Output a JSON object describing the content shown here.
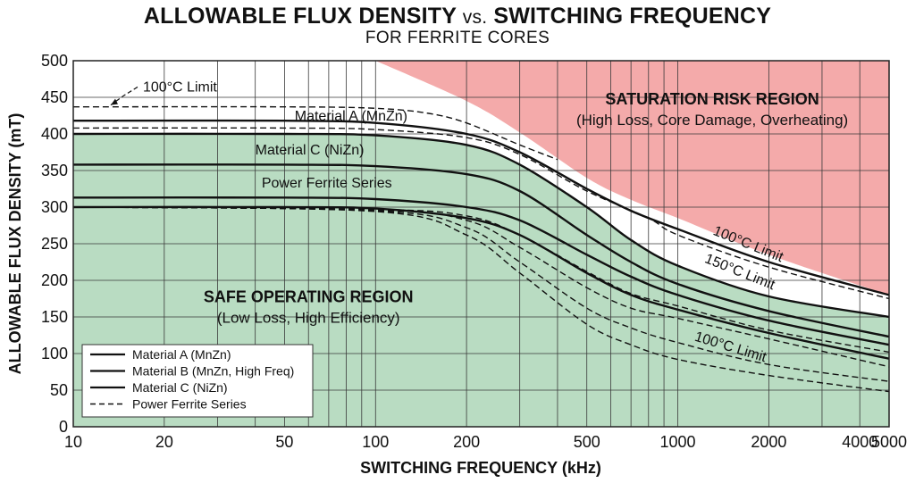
{
  "title_main": "ALLOWABLE FLUX DENSITY",
  "title_vs": "vs.",
  "title_rest": "SWITCHING FREQUENCY",
  "subtitle": "FOR FERRITE CORES",
  "chart_data": {
    "type": "line",
    "title": "ALLOWABLE FLUX DENSITY vs. SWITCHING FREQUENCY",
    "subtitle": "FOR FERRITE CORES",
    "xlabel": "SWITCHING FREQUENCY (kHz)",
    "ylabel": "ALLOWABLE FLUX DENSITY (mT)",
    "xscale": "log",
    "xlim": [
      10,
      5000
    ],
    "ylim": [
      0,
      500
    ],
    "x_ticks": [
      10,
      20,
      50,
      100,
      200,
      500,
      1000,
      2000,
      4000,
      5000
    ],
    "y_ticks": [
      0,
      50,
      100,
      150,
      200,
      250,
      300,
      350,
      400,
      450,
      500
    ],
    "grid": true,
    "series": [
      {
        "style": "dashed",
        "points": [
          [
            10,
            437
          ],
          [
            50,
            437
          ],
          [
            100,
            435
          ],
          [
            150,
            428
          ],
          [
            200,
            415
          ],
          [
            300,
            385
          ],
          [
            400,
            365
          ]
        ]
      },
      {
        "style": "solid",
        "points": [
          [
            10,
            418
          ],
          [
            50,
            418
          ],
          [
            100,
            415
          ],
          [
            200,
            400
          ],
          [
            300,
            375
          ],
          [
            500,
            325
          ],
          [
            700,
            295
          ],
          [
            1000,
            270
          ],
          [
            2000,
            225
          ],
          [
            5000,
            180
          ]
        ]
      },
      {
        "style": "dashed",
        "points": [
          [
            10,
            408
          ],
          [
            50,
            408
          ],
          [
            100,
            406
          ],
          [
            200,
            395
          ],
          [
            300,
            372
          ],
          [
            500,
            322
          ],
          [
            800,
            285
          ],
          [
            1000,
            262
          ],
          [
            2000,
            218
          ],
          [
            5000,
            175
          ]
        ]
      },
      {
        "style": "solid",
        "points": [
          [
            10,
            400
          ],
          [
            50,
            400
          ],
          [
            100,
            398
          ],
          [
            200,
            385
          ],
          [
            300,
            358
          ],
          [
            500,
            300
          ],
          [
            700,
            255
          ],
          [
            1000,
            220
          ],
          [
            2000,
            178
          ],
          [
            5000,
            150
          ]
        ]
      },
      {
        "style": "solid",
        "points": [
          [
            10,
            358
          ],
          [
            50,
            358
          ],
          [
            100,
            356
          ],
          [
            200,
            345
          ],
          [
            300,
            322
          ],
          [
            500,
            262
          ],
          [
            700,
            225
          ],
          [
            1000,
            195
          ],
          [
            2000,
            158
          ],
          [
            5000,
            123
          ]
        ]
      },
      {
        "style": "solid",
        "points": [
          [
            10,
            313
          ],
          [
            50,
            313
          ],
          [
            100,
            311
          ],
          [
            200,
            300
          ],
          [
            300,
            282
          ],
          [
            500,
            235
          ],
          [
            700,
            205
          ],
          [
            1000,
            180
          ],
          [
            2000,
            145
          ],
          [
            5000,
            112
          ]
        ]
      },
      {
        "style": "solid",
        "points": [
          [
            10,
            300
          ],
          [
            50,
            300
          ],
          [
            100,
            298
          ],
          [
            200,
            285
          ],
          [
            300,
            262
          ],
          [
            500,
            210
          ],
          [
            700,
            180
          ],
          [
            1000,
            160
          ],
          [
            2000,
            128
          ],
          [
            5000,
            93
          ]
        ]
      },
      {
        "style": "dashed",
        "points": [
          [
            10,
            300
          ],
          [
            100,
            297
          ],
          [
            200,
            288
          ],
          [
            300,
            262
          ],
          [
            500,
            212
          ],
          [
            700,
            182
          ],
          [
            1000,
            165
          ],
          [
            2000,
            132
          ],
          [
            5000,
            102
          ]
        ]
      },
      {
        "style": "dashed",
        "points": [
          [
            10,
            300
          ],
          [
            100,
            296
          ],
          [
            200,
            282
          ],
          [
            300,
            245
          ],
          [
            500,
            190
          ],
          [
            700,
            162
          ],
          [
            1000,
            148
          ],
          [
            2000,
            120
          ],
          [
            5000,
            82
          ]
        ]
      },
      {
        "style": "dashed",
        "points": [
          [
            10,
            300
          ],
          [
            100,
            295
          ],
          [
            200,
            272
          ],
          [
            300,
            225
          ],
          [
            500,
            162
          ],
          [
            700,
            135
          ],
          [
            1000,
            115
          ],
          [
            2000,
            85
          ],
          [
            5000,
            62
          ]
        ]
      },
      {
        "style": "dashed",
        "points": [
          [
            10,
            300
          ],
          [
            100,
            294
          ],
          [
            200,
            262
          ],
          [
            300,
            210
          ],
          [
            500,
            140
          ],
          [
            700,
            112
          ],
          [
            1000,
            92
          ],
          [
            2000,
            70
          ],
          [
            5000,
            48
          ]
        ]
      }
    ],
    "regions": {
      "saturation": {
        "title": "SATURATION RISK REGION",
        "subtitle": "(High Loss, Core Damage, Overheating)",
        "color": "#f4aaaa",
        "boundary": [
          [
            100,
            500
          ],
          [
            200,
            445
          ],
          [
            300,
            402
          ],
          [
            500,
            340
          ],
          [
            700,
            310
          ],
          [
            1000,
            285
          ],
          [
            2000,
            235
          ],
          [
            5000,
            180
          ]
        ]
      },
      "safe": {
        "title": "SAFE OPERATING REGION",
        "subtitle": "(Low Loss, High Efficiency)",
        "color": "#b9dcc2",
        "boundary": [
          [
            10,
            400
          ],
          [
            50,
            400
          ],
          [
            100,
            398
          ],
          [
            200,
            385
          ],
          [
            300,
            358
          ],
          [
            500,
            300
          ],
          [
            700,
            255
          ],
          [
            1000,
            220
          ],
          [
            2000,
            178
          ],
          [
            5000,
            150
          ]
        ]
      }
    },
    "annotations": [
      {
        "text": "100°C Limit",
        "at": [
          17,
          458
        ]
      },
      {
        "text": "Material A (MnZn)",
        "at": [
          54,
          418
        ]
      },
      {
        "text": "Material C (NiZn)",
        "at": [
          40,
          372
        ]
      },
      {
        "text": "Power Ferrite Series",
        "at": [
          42,
          327
        ]
      },
      {
        "text": "100°C Limit",
        "at": [
          1300,
          263
        ],
        "rotate": 22
      },
      {
        "text": "150°C Limit",
        "at": [
          1220,
          225
        ],
        "rotate": 22
      },
      {
        "text": "100°C Limit",
        "at": [
          1130,
          118
        ],
        "rotate": 17
      }
    ],
    "legend": {
      "placement": "bottom-left",
      "entries": [
        {
          "label": "Material A (MnZn)",
          "style": "solid"
        },
        {
          "label": "Material B (MnZn, High Freq)",
          "style": "solid"
        },
        {
          "label": "Material C (NiZn)",
          "style": "solid"
        },
        {
          "label": "Power Ferrite Series",
          "style": "dashed"
        }
      ]
    }
  }
}
